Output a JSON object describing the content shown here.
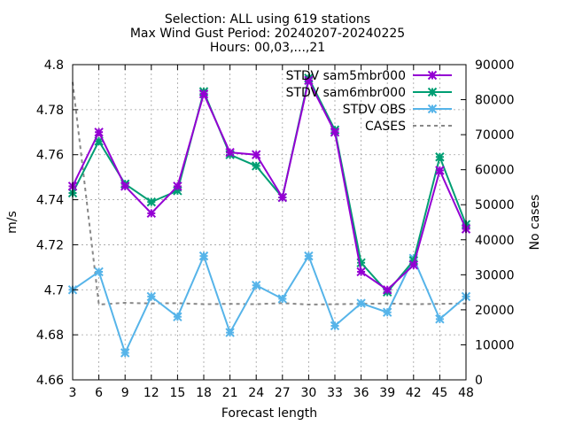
{
  "chart_data": {
    "type": "line",
    "title_lines": [
      "Selection: ALL using   619 stations",
      "Max Wind Gust   Period: 20240207-20240225",
      "Hours: 00,03,...,21"
    ],
    "xlabel": "Forecast length",
    "ylabel": "m/s",
    "y2label": "No cases",
    "x": [
      3,
      6,
      9,
      12,
      15,
      18,
      21,
      24,
      27,
      30,
      33,
      36,
      39,
      42,
      45,
      48
    ],
    "xlim": [
      3,
      48
    ],
    "ylim": [
      4.66,
      4.8
    ],
    "y2lim": [
      0,
      90000
    ],
    "yticks": [
      "4.66",
      "4.68",
      "4.7",
      "4.72",
      "4.74",
      "4.76",
      "4.78",
      "4.8"
    ],
    "y2ticks": [
      "0",
      "10000",
      "20000",
      "30000",
      "40000",
      "50000",
      "60000",
      "70000",
      "80000",
      "90000"
    ],
    "grid": true,
    "legend_position": "top-right",
    "series": [
      {
        "name": "STDV sam5mbr000",
        "color": "#9400d3",
        "axis": "left",
        "style": "solid",
        "values": [
          4.746,
          4.77,
          4.746,
          4.734,
          4.746,
          4.787,
          4.761,
          4.76,
          4.741,
          4.793,
          4.77,
          4.708,
          4.7,
          4.711,
          4.753,
          4.727
        ]
      },
      {
        "name": "STDV sam6mbr000",
        "color": "#009e73",
        "axis": "left",
        "style": "solid",
        "values": [
          4.743,
          4.766,
          4.747,
          4.739,
          4.744,
          4.788,
          4.76,
          4.755,
          4.741,
          4.794,
          4.771,
          4.712,
          4.699,
          4.713,
          4.759,
          4.729
        ]
      },
      {
        "name": "STDV OBS",
        "color": "#56b4e9",
        "axis": "left",
        "style": "solid",
        "values": [
          4.7,
          4.708,
          4.672,
          4.697,
          4.688,
          4.715,
          4.681,
          4.702,
          4.696,
          4.715,
          4.684,
          4.694,
          4.69,
          4.714,
          4.687,
          4.697
        ]
      },
      {
        "name": "CASES",
        "color": "#888888",
        "axis": "right",
        "style": "dashed",
        "values": [
          85000,
          21500,
          22000,
          21800,
          21900,
          21600,
          21700,
          21600,
          21900,
          21500,
          21600,
          21700,
          21800,
          21600,
          21700,
          21800
        ]
      }
    ]
  }
}
